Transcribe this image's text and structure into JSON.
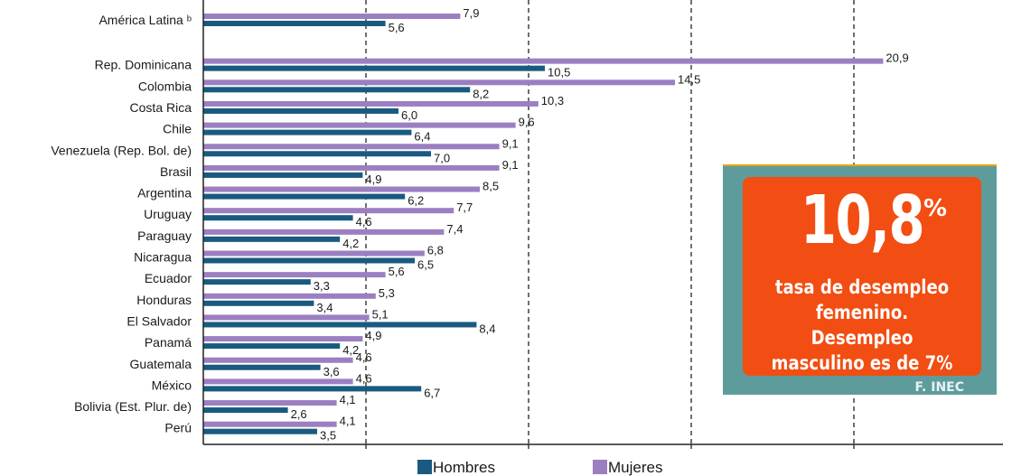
{
  "chart_data": {
    "type": "bar",
    "orientation": "horizontal",
    "categories": [
      "América Latina ᵇ",
      "Rep. Dominicana",
      "Colombia",
      "Costa Rica",
      "Chile",
      "Venezuela (Rep. Bol. de)",
      "Brasil",
      "Argentina",
      "Uruguay",
      "Paraguay",
      "Nicaragua",
      "Ecuador",
      "Honduras",
      "El Salvador",
      "Panamá",
      "Guatemala",
      "México",
      "Bolivia (Est. Plur. de)",
      "Perú"
    ],
    "series": [
      {
        "name": "Mujeres",
        "color": "#9b7fc1",
        "values": [
          7.9,
          20.9,
          14.5,
          10.3,
          9.6,
          9.1,
          9.1,
          8.5,
          7.7,
          7.4,
          6.8,
          5.6,
          5.3,
          5.1,
          4.9,
          4.6,
          4.6,
          4.1,
          4.1
        ],
        "labels": [
          "7,9",
          "20,9",
          "14,5",
          "10,3",
          "9,6",
          "9,1",
          "9,1",
          "8,5",
          "7,7",
          "7,4",
          "6,8",
          "5,6",
          "5,3",
          "5,1",
          "4,9",
          "4,6",
          "4,6",
          "4,1",
          "4,1"
        ]
      },
      {
        "name": "Hombres",
        "color": "#1a5a80",
        "values": [
          5.6,
          10.5,
          8.2,
          6.0,
          6.4,
          7.0,
          4.9,
          6.2,
          4.6,
          4.2,
          6.5,
          3.3,
          3.4,
          8.4,
          4.2,
          3.6,
          6.7,
          2.6,
          3.5
        ],
        "labels": [
          "5,6",
          "10,5",
          "8,2",
          "6,0",
          "6,4",
          "7,0",
          "4,9",
          "6,2",
          "4,6",
          "4,2",
          "6,5",
          "3,3",
          "3,4",
          "8,4",
          "4,2",
          "3,6",
          "6,7",
          "2,6",
          "3,5"
        ]
      }
    ],
    "xlim": [
      0,
      25
    ],
    "gridlines": [
      5,
      10,
      15,
      20,
      25
    ],
    "grid": "dashed vertical",
    "legend": "bottom-center"
  },
  "infobox": {
    "number": "10,8",
    "percent_sign": "%",
    "caption": "tasa de desempleo femenino. Desempleo masculino es de 7%",
    "source": "F. INEC"
  }
}
